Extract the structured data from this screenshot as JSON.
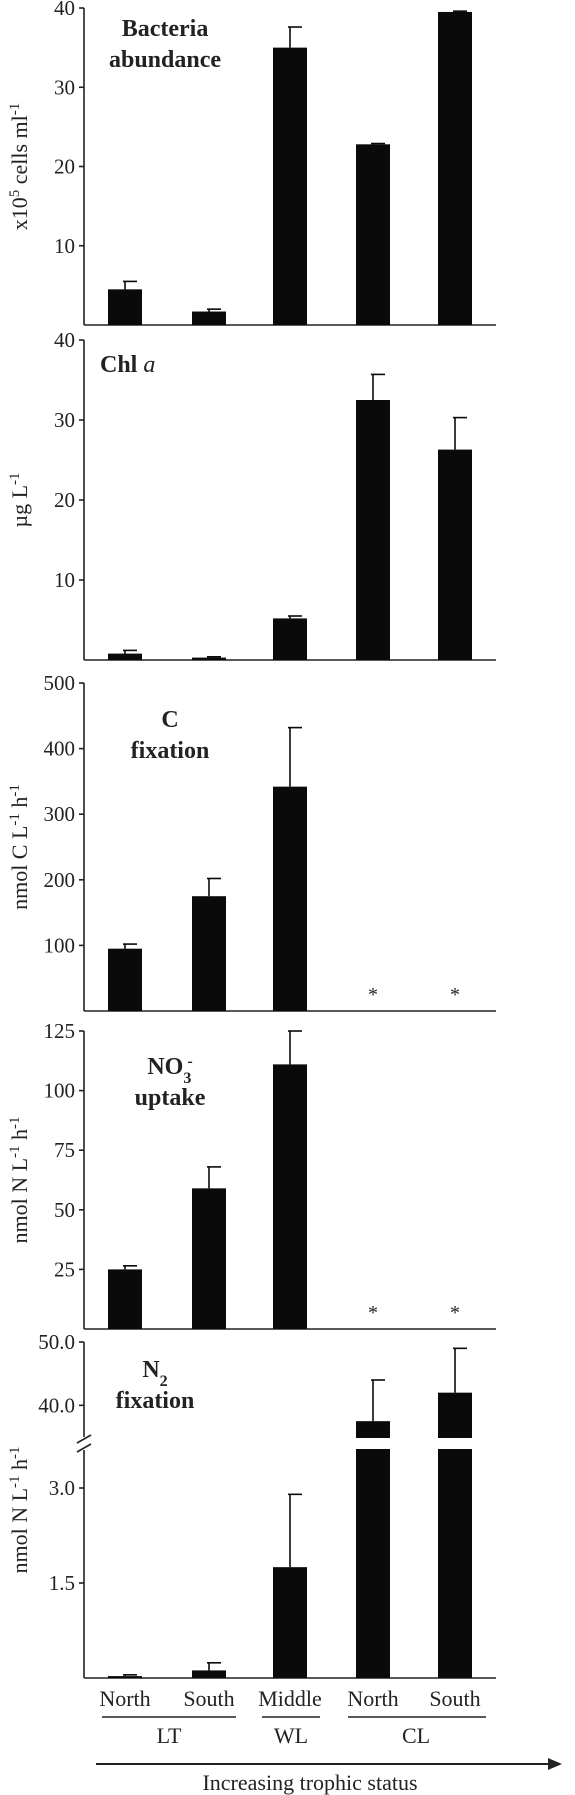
{
  "chart_data": [
    {
      "type": "bar",
      "title": "Bacteria abundance",
      "title_lines": [
        "Bacteria",
        "abundance"
      ],
      "ylabel": "x10",
      "ylabel_sup": "5",
      "ylabel_rest": " cells ml",
      "ylabel_sup2": "-1",
      "ylim": [
        0,
        40
      ],
      "yticks": [
        "10",
        "20",
        "30",
        "40"
      ],
      "ytick_values": [
        10,
        20,
        30,
        40
      ],
      "categories": [
        "North",
        "South",
        "Middle",
        "North",
        "South"
      ],
      "values": [
        4.5,
        1.7,
        35.0,
        22.8,
        39.5
      ],
      "errors": [
        1.0,
        0.3,
        2.6,
        0.1,
        0.1
      ],
      "markers": [
        "",
        "",
        "",
        "",
        ""
      ]
    },
    {
      "type": "bar",
      "title": "Chl a",
      "title_bold": "Chl ",
      "title_italic": "a",
      "ylabel": "µg  L",
      "ylabel_sup": "-1",
      "ylim": [
        0,
        40
      ],
      "yticks": [
        "10",
        "20",
        "30",
        "40"
      ],
      "ytick_values": [
        10,
        20,
        30,
        40
      ],
      "categories": [
        "North",
        "South",
        "Middle",
        "North",
        "South"
      ],
      "values": [
        0.8,
        0.3,
        5.2,
        32.5,
        26.3
      ],
      "errors": [
        0.4,
        0.1,
        0.3,
        3.2,
        4.0
      ],
      "markers": [
        "",
        "",
        "",
        "",
        ""
      ]
    },
    {
      "type": "bar",
      "title": "C fixation",
      "title_lines": [
        "C",
        "fixation"
      ],
      "ylabel": "nmol C L",
      "ylabel_sup": "-1",
      "ylabel_rest": " h",
      "ylabel_sup2": "-1",
      "ylim": [
        0,
        500
      ],
      "yticks": [
        "100",
        "200",
        "300",
        "400",
        "500"
      ],
      "ytick_values": [
        100,
        200,
        300,
        400,
        500
      ],
      "categories": [
        "North",
        "South",
        "Middle",
        "North",
        "South"
      ],
      "values": [
        95,
        175,
        342,
        null,
        null
      ],
      "errors": [
        7,
        27,
        90,
        null,
        null
      ],
      "markers": [
        "",
        "",
        "",
        "*",
        "*"
      ]
    },
    {
      "type": "bar",
      "title": "NO3- uptake",
      "title_base": "NO",
      "title_sub": "3",
      "title_sup": "-",
      "title_line2": "uptake",
      "ylabel": "nmol N L",
      "ylabel_sup": "-1",
      "ylabel_rest": " h",
      "ylabel_sup2": "-1",
      "ylim": [
        0,
        125
      ],
      "yticks": [
        "25",
        "50",
        "75",
        "100",
        "125"
      ],
      "ytick_values": [
        25,
        50,
        75,
        100,
        125
      ],
      "categories": [
        "North",
        "South",
        "Middle",
        "North",
        "South"
      ],
      "values": [
        25,
        59,
        111,
        null,
        null
      ],
      "errors": [
        1.5,
        9,
        14,
        null,
        null
      ],
      "markers": [
        "",
        "",
        "",
        "*",
        "*"
      ]
    },
    {
      "type": "bar",
      "title": "N2 fixation",
      "title_base": "N",
      "title_sub": "2",
      "title_line2": "fixation",
      "ylabel": "nmol N L",
      "ylabel_sup": "-1",
      "ylabel_rest": " h",
      "ylabel_sup2": "-1",
      "broken_axis": true,
      "ylim_lower": [
        0,
        3.6
      ],
      "ylim_upper": [
        35,
        50
      ],
      "yticks_lower": [
        "1.5",
        "3.0"
      ],
      "ytick_values_lower": [
        1.5,
        3.0
      ],
      "yticks_upper": [
        "40.0",
        "50.0"
      ],
      "ytick_values_upper": [
        40,
        50
      ],
      "categories": [
        "North",
        "South",
        "Middle",
        "North",
        "South"
      ],
      "values": [
        0.03,
        0.12,
        1.75,
        37.5,
        42.0
      ],
      "errors": [
        0.02,
        0.12,
        1.15,
        6.5,
        7.0
      ],
      "markers": [
        "",
        "",
        "",
        "",
        ""
      ]
    }
  ],
  "groups": [
    {
      "label": "LT"
    },
    {
      "label": "WL"
    },
    {
      "label": "CL"
    }
  ],
  "x_axis_title": "Increasing trophic status",
  "colors": {
    "bar": "#0a0a0a",
    "axis": "#222222"
  }
}
